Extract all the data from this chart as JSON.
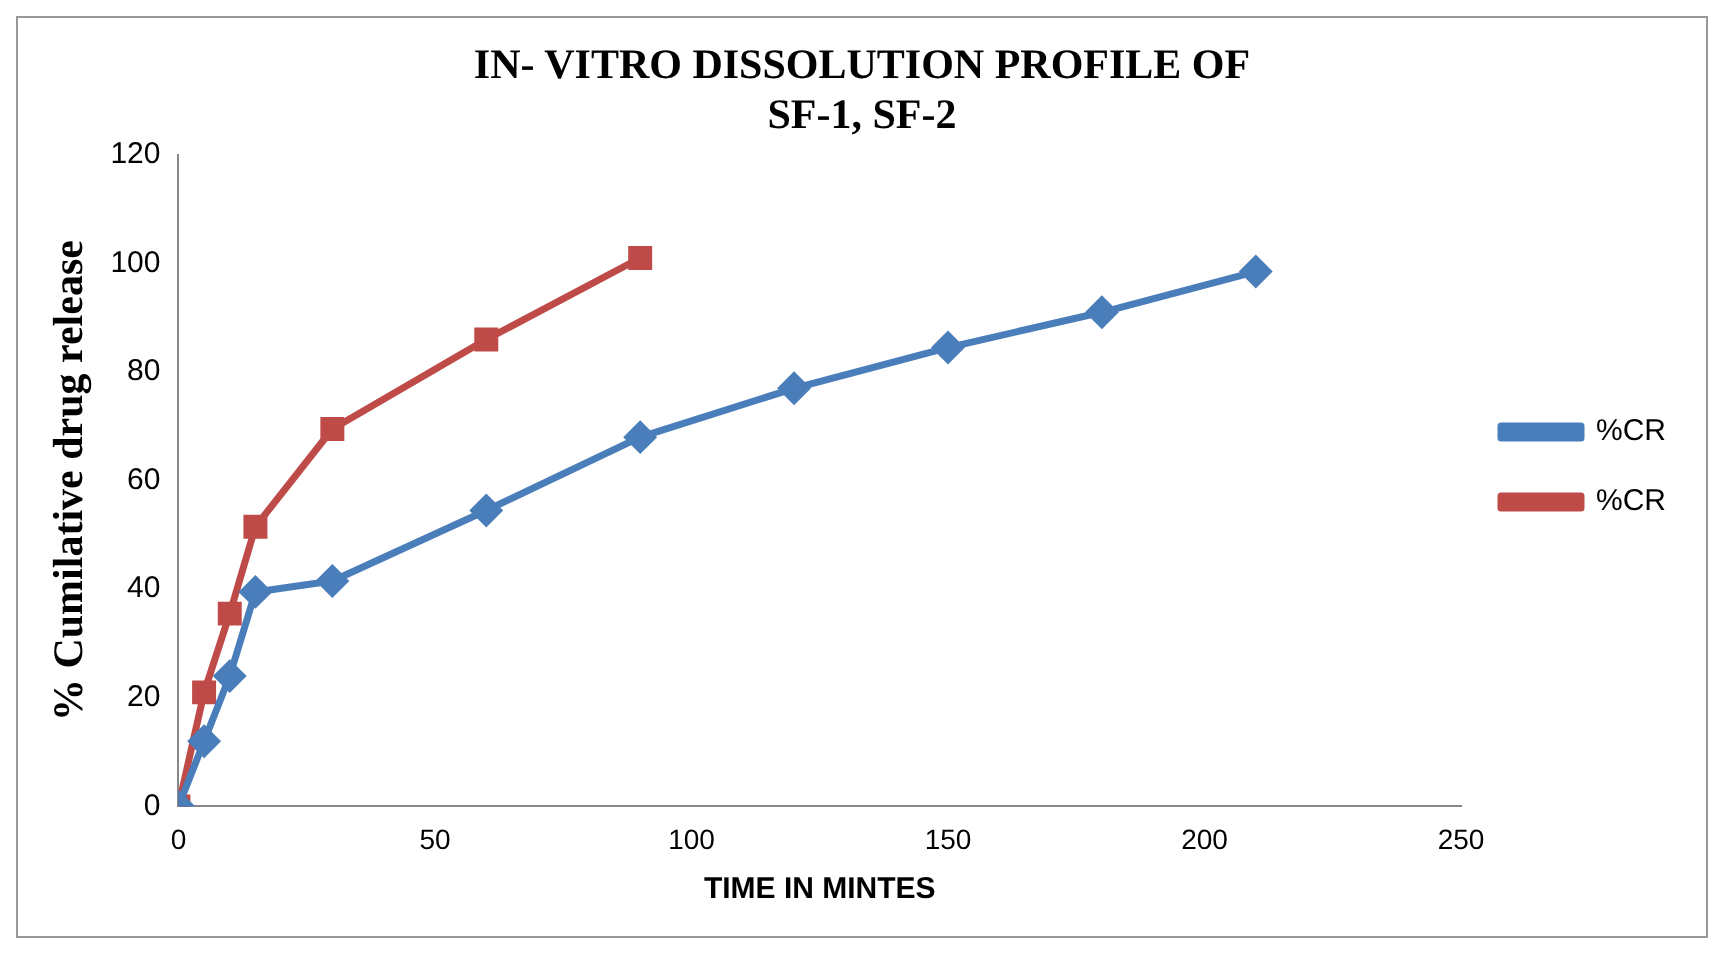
{
  "chart_data": {
    "type": "line",
    "title": [
      "IN- VITRO DISSOLUTION PROFILE OF",
      "SF-1, SF-2"
    ],
    "xlabel": "TIME IN MINTES",
    "ylabel": "% Cumilative drug release",
    "xlim": [
      0,
      250
    ],
    "xticks": [
      0,
      50,
      100,
      150,
      200,
      250
    ],
    "ylim": [
      0,
      120
    ],
    "yticks": [
      0,
      20,
      40,
      60,
      80,
      100,
      120
    ],
    "grid": false,
    "legend": "right",
    "series": [
      {
        "name": "%CR",
        "color": "#4a7ebb",
        "marker": "diamond",
        "x": [
          0,
          5,
          10,
          15,
          30,
          60,
          90,
          120,
          150,
          180,
          210
        ],
        "values": [
          0,
          12,
          24,
          39.5,
          41.5,
          54.5,
          68,
          77,
          84.5,
          91,
          98.5
        ]
      },
      {
        "name": "%CR",
        "color": "#be4b48",
        "marker": "square",
        "x": [
          0,
          5,
          10,
          15,
          30,
          60,
          90
        ],
        "values": [
          0,
          21,
          35.5,
          51.5,
          69.5,
          86,
          101
        ]
      }
    ]
  }
}
